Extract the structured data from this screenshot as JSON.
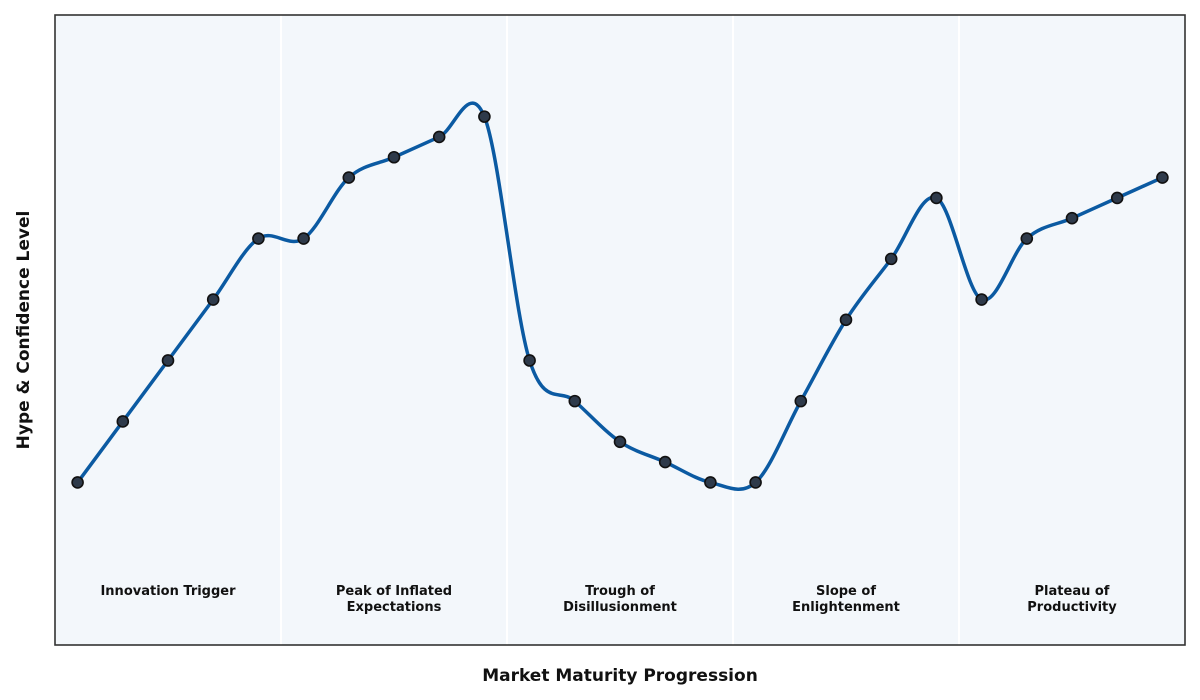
{
  "chart_data": {
    "type": "line",
    "title": "",
    "xlabel": "Market Maturity Progression",
    "ylabel": "Hype & Confidence Level",
    "xlim": [
      -0.5,
      24.5
    ],
    "ylim": [
      0,
      31
    ],
    "grid": false,
    "ticks_visible": false,
    "colors": {
      "plot_background": "#f3f7fb",
      "line": "#0b5aa2",
      "marker_fill": "#2e3a4a",
      "marker_edge": "#111111",
      "divider": "#ffffff",
      "frame": "#333333"
    },
    "phases": [
      {
        "label_lines": [
          "Innovation Trigger"
        ],
        "x_start": -0.5,
        "x_end": 4.5
      },
      {
        "label_lines": [
          "Peak of Inflated",
          "Expectations"
        ],
        "x_start": 4.5,
        "x_end": 9.5
      },
      {
        "label_lines": [
          "Trough of",
          "Disillusionment"
        ],
        "x_start": 9.5,
        "x_end": 14.5
      },
      {
        "label_lines": [
          "Slope of",
          "Enlightenment"
        ],
        "x_start": 14.5,
        "x_end": 19.5
      },
      {
        "label_lines": [
          "Plateau of",
          "Productivity"
        ],
        "x_start": 19.5,
        "x_end": 24.5
      }
    ],
    "series": [
      {
        "x": [
          0,
          1,
          2,
          3,
          4,
          5,
          6,
          7,
          8,
          9,
          10,
          11,
          12,
          13,
          14,
          15,
          16,
          17,
          18,
          19,
          20,
          21,
          22,
          23,
          24
        ],
        "y": [
          8,
          11,
          14,
          17,
          20,
          20,
          23,
          24,
          25,
          26,
          14,
          12,
          10,
          9,
          8,
          8,
          12,
          16,
          19,
          22,
          17,
          20,
          21,
          22,
          23
        ]
      }
    ]
  }
}
